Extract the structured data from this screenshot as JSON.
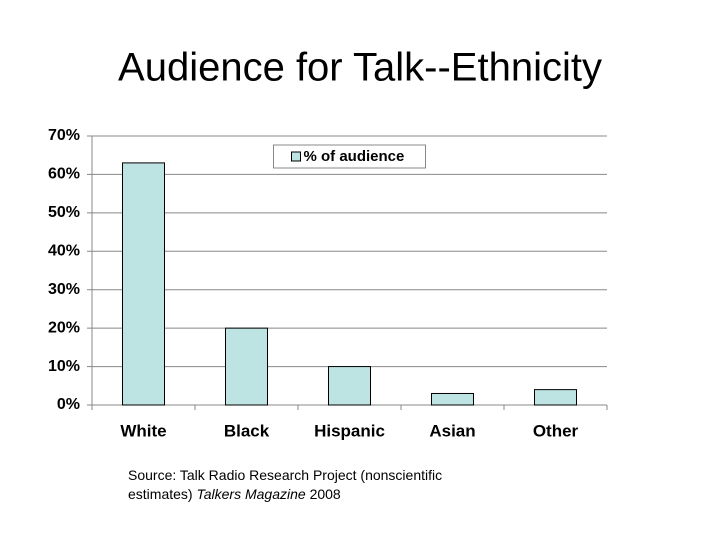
{
  "chart_data": {
    "type": "bar",
    "title": "Audience for Talk--Ethnicity",
    "categories": [
      "White",
      "Black",
      "Hispanic",
      "Asian",
      "Other"
    ],
    "series": [
      {
        "name": "% of audience",
        "color": "#bde3e3",
        "values": [
          63,
          20,
          10,
          3,
          4
        ]
      }
    ],
    "ylim": [
      0,
      70
    ],
    "yticks": [
      {
        "value": 0,
        "label": "0%"
      },
      {
        "value": 10,
        "label": "10%"
      },
      {
        "value": 20,
        "label": "20%"
      },
      {
        "value": 30,
        "label": "30%"
      },
      {
        "value": 40,
        "label": "40%"
      },
      {
        "value": 50,
        "label": "50%"
      },
      {
        "value": 60,
        "label": "60%"
      },
      {
        "value": 70,
        "label": "70%"
      }
    ],
    "grid": true,
    "legend": "top",
    "source": {
      "prefix": "Source: Talk Radio Research Project (nonscientific estimates)",
      "italic": "Talkers Magazine",
      "suffix": "2008"
    }
  }
}
